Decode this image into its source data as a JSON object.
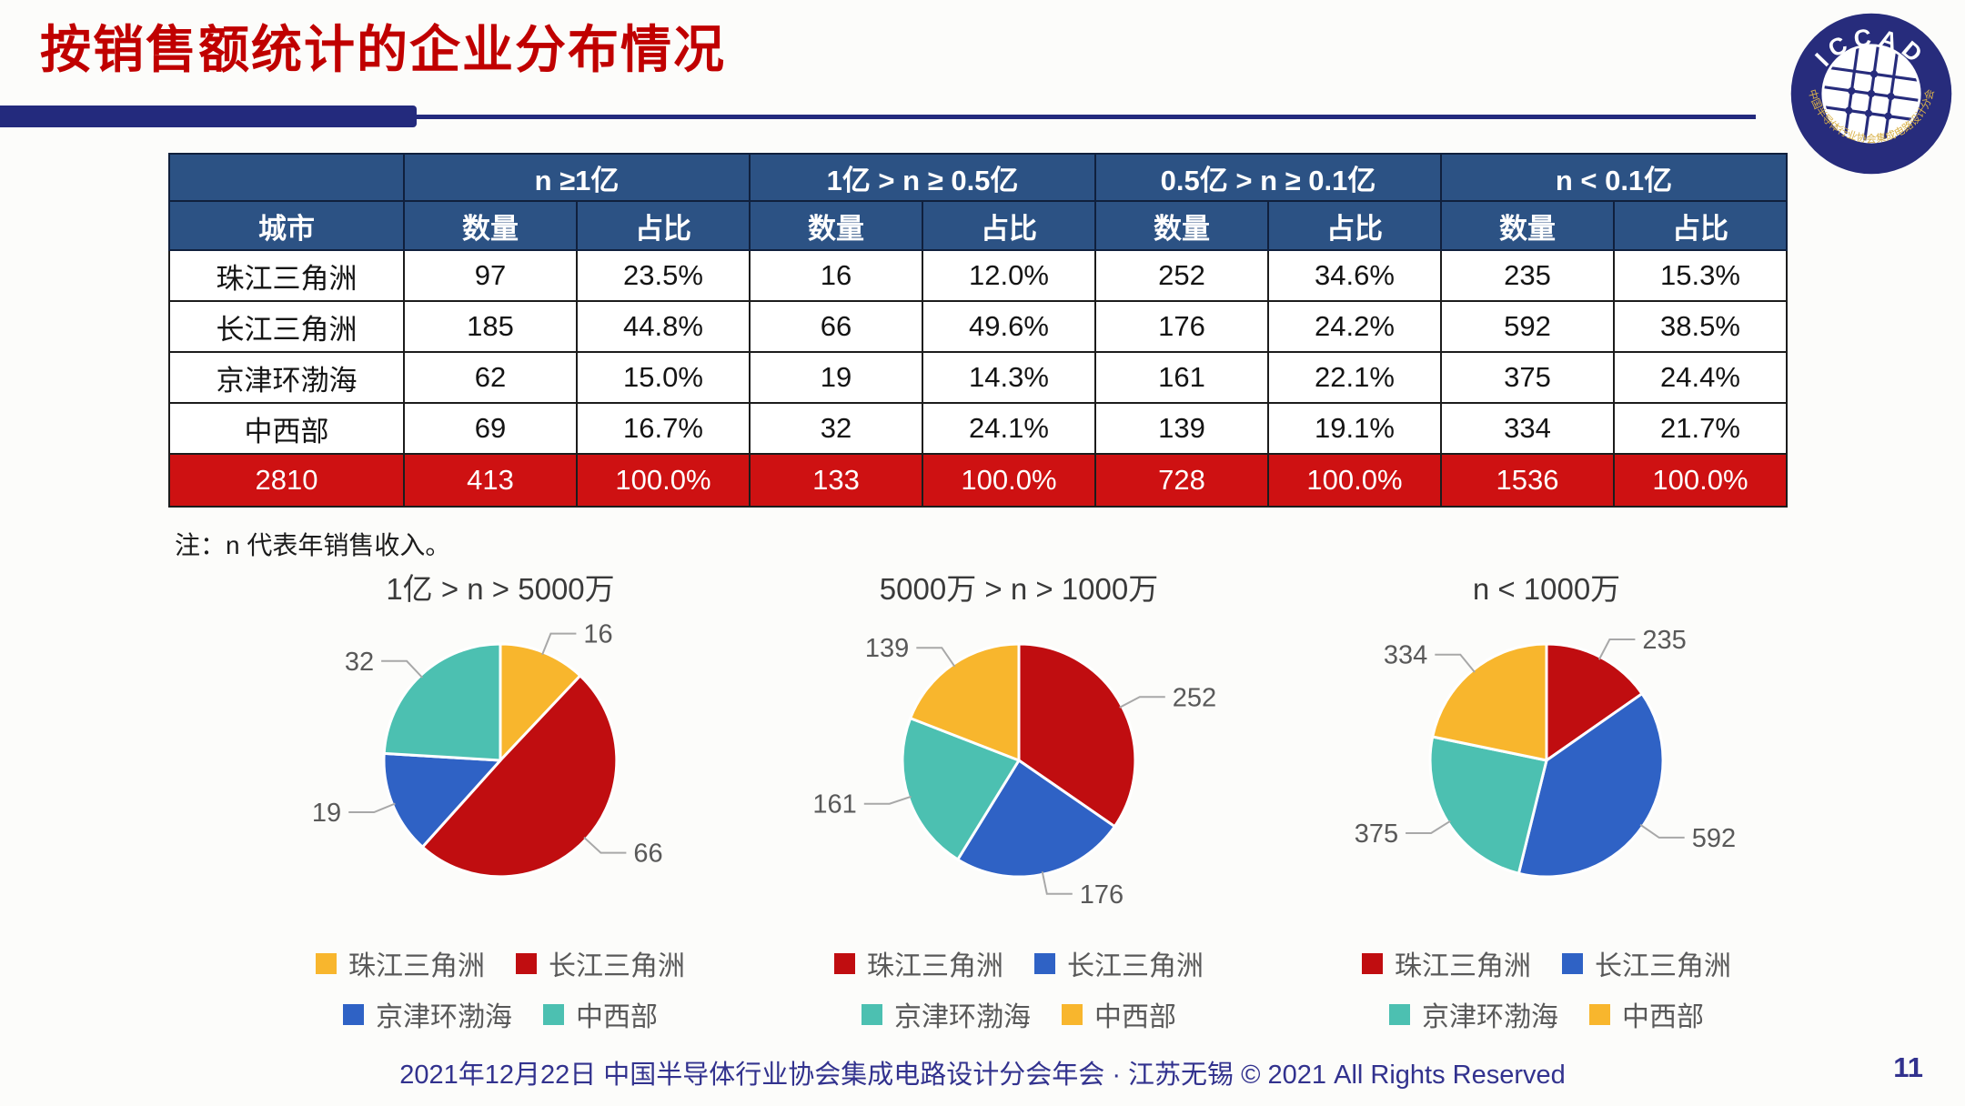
{
  "page": {
    "title": "按销售额统计的企业分布情况",
    "note": "注：n 代表年销售收入。",
    "footer": "2021年12月22日 中国半导体行业协会集成电路设计分会年会 · 江苏无锡 © 2021 All Rights Reserved",
    "page_number": "11"
  },
  "logo": {
    "top_text": "ICCAD",
    "bottom_text": "中国半导体行业协会集成电路设计分会"
  },
  "colors": {
    "title_red": "#C00000",
    "header_navy": "#2C5284",
    "total_row_red": "#CE1112",
    "accent_navy": "#232A7D",
    "footer_navy": "#32328E",
    "pie_yellow": "#F8B62D",
    "pie_red": "#C00D10",
    "pie_blue": "#2F62C5",
    "pie_teal": "#4CC0B1",
    "label_gray": "#595959"
  },
  "table": {
    "city_header": "城市",
    "group_headers": [
      "n ≥1亿",
      "1亿 > n ≥ 0.5亿",
      "0.5亿 > n ≥ 0.1亿",
      "n < 0.1亿"
    ],
    "sub_headers": [
      "数量",
      "占比"
    ],
    "rows": [
      {
        "city": "珠江三角洲",
        "values": [
          "97",
          "23.5%",
          "16",
          "12.0%",
          "252",
          "34.6%",
          "235",
          "15.3%"
        ]
      },
      {
        "city": "长江三角洲",
        "values": [
          "185",
          "44.8%",
          "66",
          "49.6%",
          "176",
          "24.2%",
          "592",
          "38.5%"
        ]
      },
      {
        "city": "京津环渤海",
        "values": [
          "62",
          "15.0%",
          "19",
          "14.3%",
          "161",
          "22.1%",
          "375",
          "24.4%"
        ]
      },
      {
        "city": "中西部",
        "values": [
          "69",
          "16.7%",
          "32",
          "24.1%",
          "139",
          "19.1%",
          "334",
          "21.7%"
        ]
      }
    ],
    "total_row": {
      "city": "2810",
      "values": [
        "413",
        "100.0%",
        "133",
        "100.0%",
        "728",
        "100.0%",
        "1536",
        "100.0%"
      ]
    }
  },
  "chart_data": [
    {
      "type": "pie",
      "title": "1亿 > n > 5000万",
      "categories": [
        "珠江三角洲",
        "长江三角洲",
        "京津环渤海",
        "中西部"
      ],
      "values": [
        16,
        66,
        19,
        32
      ],
      "colors": [
        "#F8B62D",
        "#C00D10",
        "#2F62C5",
        "#4CC0B1"
      ],
      "legend_position": "bottom",
      "start_angle_deg": 0,
      "direction": "clockwise"
    },
    {
      "type": "pie",
      "title": "5000万 > n > 1000万",
      "categories": [
        "珠江三角洲",
        "长江三角洲",
        "京津环渤海",
        "中西部"
      ],
      "values": [
        252,
        176,
        161,
        139
      ],
      "colors": [
        "#C00D10",
        "#2F62C5",
        "#4CC0B1",
        "#F8B62D"
      ],
      "legend_position": "bottom",
      "start_angle_deg": 0,
      "direction": "clockwise"
    },
    {
      "type": "pie",
      "title": "n < 1000万",
      "categories": [
        "珠江三角洲",
        "长江三角洲",
        "京津环渤海",
        "中西部"
      ],
      "values": [
        235,
        592,
        375,
        334
      ],
      "colors": [
        "#C00D10",
        "#2F62C5",
        "#4CC0B1",
        "#F8B62D"
      ],
      "legend_position": "bottom",
      "start_angle_deg": 0,
      "direction": "clockwise"
    }
  ]
}
